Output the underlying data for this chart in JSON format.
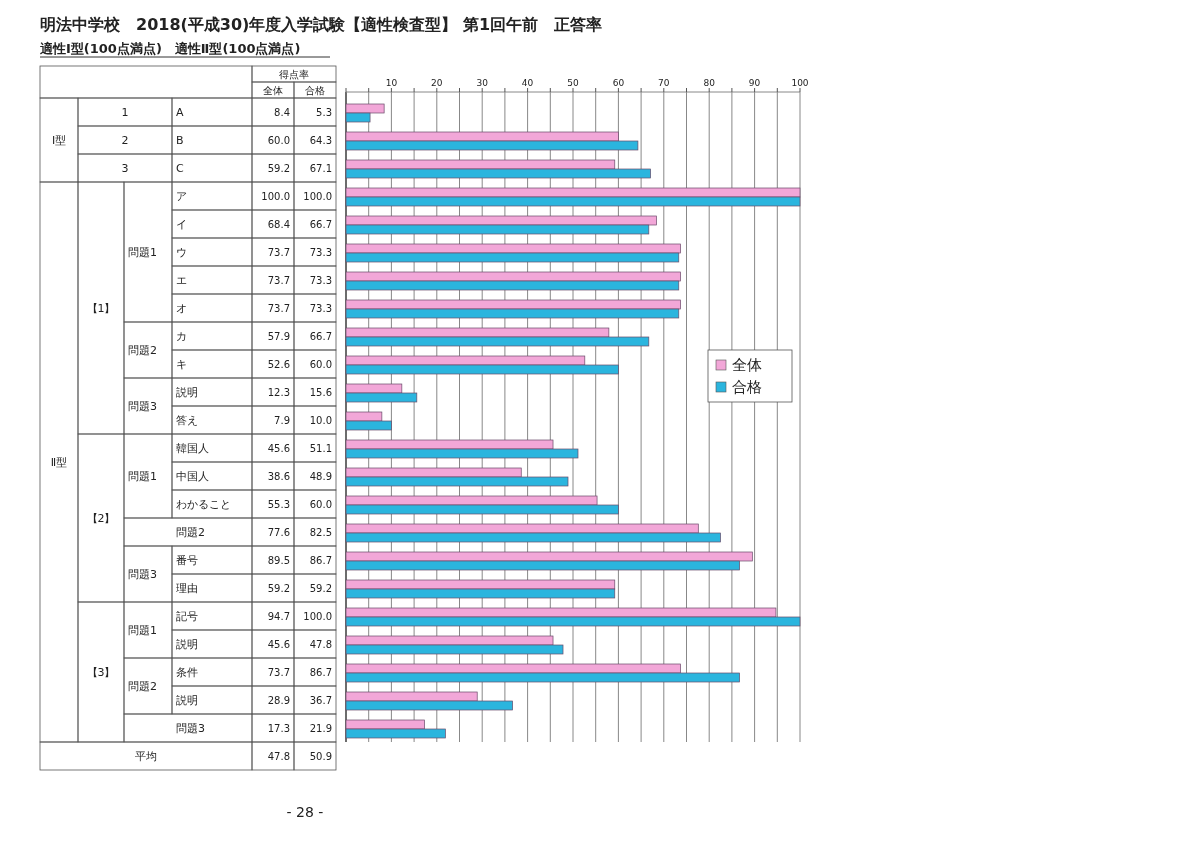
{
  "chart_data": {
    "type": "bar",
    "orientation": "horizontal",
    "title": "明法中学校　2018(平成30)年度入学試験【適性検査型】 第1回午前　正答率",
    "subtitle": "適性Ⅰ型(100点満点)　適性Ⅱ型(100点満点)",
    "categories": [
      "A",
      "B",
      "C",
      "ア",
      "イ",
      "ウ",
      "エ",
      "オ",
      "カ",
      "キ",
      "説明",
      "答え",
      "韓国人",
      "中国人",
      "わかること",
      "問題2",
      "番号",
      "理由",
      "記号",
      "説明",
      "条件",
      "説明",
      "問題3"
    ],
    "series": [
      {
        "name": "全体",
        "color": "#f2a7d8",
        "values": [
          8.4,
          60.0,
          59.2,
          100.0,
          68.4,
          73.7,
          73.7,
          73.7,
          57.9,
          52.6,
          12.3,
          7.9,
          45.6,
          38.6,
          55.3,
          77.6,
          89.5,
          59.2,
          94.7,
          45.6,
          73.7,
          28.9,
          17.3
        ],
        "value_labels": [
          "8.4",
          "60.0",
          "59.2",
          "100.0",
          "68.4",
          "73.7",
          "73.7",
          "73.7",
          "57.9",
          "52.6",
          "12.3",
          "7.9",
          "45.6",
          "38.6",
          "55.3",
          "77.6",
          "89.5",
          "59.2",
          "94.7",
          "45.6",
          "73.7",
          "28.9",
          "17.3"
        ]
      },
      {
        "name": "合格",
        "color": "#2bb5de",
        "values": [
          5.3,
          64.3,
          67.1,
          100.0,
          66.7,
          73.3,
          73.3,
          73.3,
          66.7,
          60.0,
          15.6,
          10.0,
          51.1,
          48.9,
          60.0,
          82.5,
          86.7,
          59.2,
          100.0,
          47.8,
          86.7,
          36.7,
          21.9
        ],
        "value_labels": [
          "5.3",
          "64.3",
          "67.1",
          "100.0",
          "66.7",
          "73.3",
          "73.3",
          "73.3",
          "66.7",
          "60.0",
          "15.6",
          "10.0",
          "51.1",
          "48.9",
          "60.0",
          "82.5",
          "86.7",
          "59.2",
          "100.0",
          "47.8",
          "86.7",
          "36.7",
          "21.9"
        ]
      }
    ],
    "x2lim": [
      0,
      100
    ],
    "x2ticks": [
      {
        "value": 0,
        "label": null
      },
      {
        "value": 5,
        "label": null
      },
      10,
      {
        "value": 15,
        "label": null
      },
      20,
      {
        "value": 25,
        "label": null
      },
      30,
      {
        "value": 35,
        "label": null
      },
      40,
      {
        "value": 45,
        "label": null
      },
      50,
      {
        "value": 55,
        "label": null
      },
      60,
      {
        "value": 65,
        "label": null
      },
      70,
      {
        "value": 75,
        "label": null
      },
      80,
      {
        "value": 85,
        "label": null
      },
      90,
      {
        "value": 95,
        "label": null
      },
      100
    ],
    "grid": "x",
    "legend": "right",
    "annotations": [
      "得点率",
      "1",
      "Ⅰ型",
      "2",
      "3",
      "Ⅱ型",
      "【1】",
      "問題1",
      "問題2",
      "問題3",
      "【2】",
      "問題1",
      "問題3",
      "【3】",
      "問題1",
      "問題2",
      "平均",
      "47.8",
      "50.9",
      "- 28 -"
    ]
  }
}
